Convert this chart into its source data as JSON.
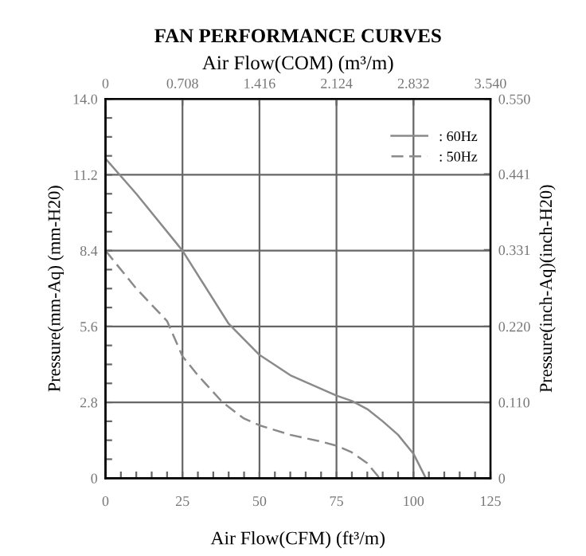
{
  "chart_data": {
    "type": "line",
    "title": "FAN PERFORMANCE CURVES",
    "xlabel": "Air Flow(CFM) (ft³/m)",
    "ylabel": "Pressure(mm-Aq) (mm-H20)",
    "y2label": "Pressure(inch-Aq)(inch-H20)",
    "x2label": "Air Flow(COM) (m³/m)",
    "series": [
      {
        "name": ": 60Hz",
        "color": "#8a8a8a",
        "line_style": "solid",
        "x": [
          0,
          10,
          25,
          40,
          50,
          60,
          70,
          75,
          80,
          85,
          90,
          95,
          100,
          104
        ],
        "values": [
          11.8,
          10.5,
          8.4,
          5.7,
          4.55,
          3.8,
          3.3,
          3.05,
          2.85,
          2.55,
          2.1,
          1.6,
          0.9,
          0
        ]
      },
      {
        "name": ": 50Hz",
        "color": "#8a8a8a",
        "line_style": "dashed",
        "x": [
          0,
          10,
          20,
          25,
          30,
          38,
          45,
          50,
          60,
          70,
          75,
          80,
          85,
          89
        ],
        "values": [
          8.4,
          7.0,
          5.8,
          4.5,
          3.8,
          2.8,
          2.2,
          1.95,
          1.6,
          1.35,
          1.2,
          0.95,
          0.55,
          0
        ]
      }
    ],
    "xlim": [
      0,
      125
    ],
    "xticks": [
      0,
      {
        "value": 5,
        "label": null
      },
      {
        "value": 10,
        "label": null
      },
      {
        "value": 15,
        "label": null
      },
      {
        "value": 20,
        "label": null
      },
      25,
      {
        "value": 30,
        "label": null
      },
      {
        "value": 35,
        "label": null
      },
      {
        "value": 40,
        "label": null
      },
      {
        "value": 45,
        "label": null
      },
      50,
      {
        "value": 55,
        "label": null
      },
      {
        "value": 60,
        "label": null
      },
      {
        "value": 65,
        "label": null
      },
      {
        "value": 70,
        "label": null
      },
      75,
      {
        "value": 80,
        "label": null
      },
      {
        "value": 85,
        "label": null
      },
      {
        "value": 90,
        "label": null
      },
      {
        "value": 95,
        "label": null
      },
      100,
      {
        "value": 105,
        "label": null
      },
      {
        "value": 110,
        "label": null
      },
      {
        "value": 115,
        "label": null
      },
      {
        "value": 120,
        "label": null
      },
      125
    ],
    "ylim": [
      0,
      14
    ],
    "yticks": [
      0,
      {
        "value": 0.7,
        "label": null
      },
      {
        "value": 1.4,
        "label": null
      },
      {
        "value": 2.1,
        "label": null
      },
      2.8,
      {
        "value": 3.5,
        "label": null
      },
      {
        "value": 4.2,
        "label": null
      },
      {
        "value": 4.9,
        "label": null
      },
      5.6,
      {
        "value": 6.3,
        "label": null
      },
      {
        "value": 7.0,
        "label": null
      },
      {
        "value": 7.7,
        "label": null
      },
      8.4,
      {
        "value": 9.1,
        "label": null
      },
      {
        "value": 9.8,
        "label": null
      },
      {
        "value": 10.5,
        "label": null
      },
      11.2,
      {
        "value": 11.9,
        "label": null
      },
      {
        "value": 12.6,
        "label": null
      },
      {
        "value": 13.3,
        "label": null
      },
      {
        "value": 14,
        "label": "14.0"
      }
    ],
    "x2lim": [
      0,
      3.54
    ],
    "x2ticks": [
      0,
      0.708,
      1.416,
      2.124,
      2.832,
      {
        "value": 3.54,
        "label": "3.540"
      }
    ],
    "y2lim": [
      0,
      0.55
    ],
    "y2ticks": [
      0,
      {
        "value": 0.11,
        "label": "0.110"
      },
      {
        "value": 0.22,
        "label": "0.220"
      },
      0.331,
      0.441,
      {
        "value": 0.55,
        "label": "0.550"
      }
    ],
    "grid": true,
    "legend": "top right"
  }
}
